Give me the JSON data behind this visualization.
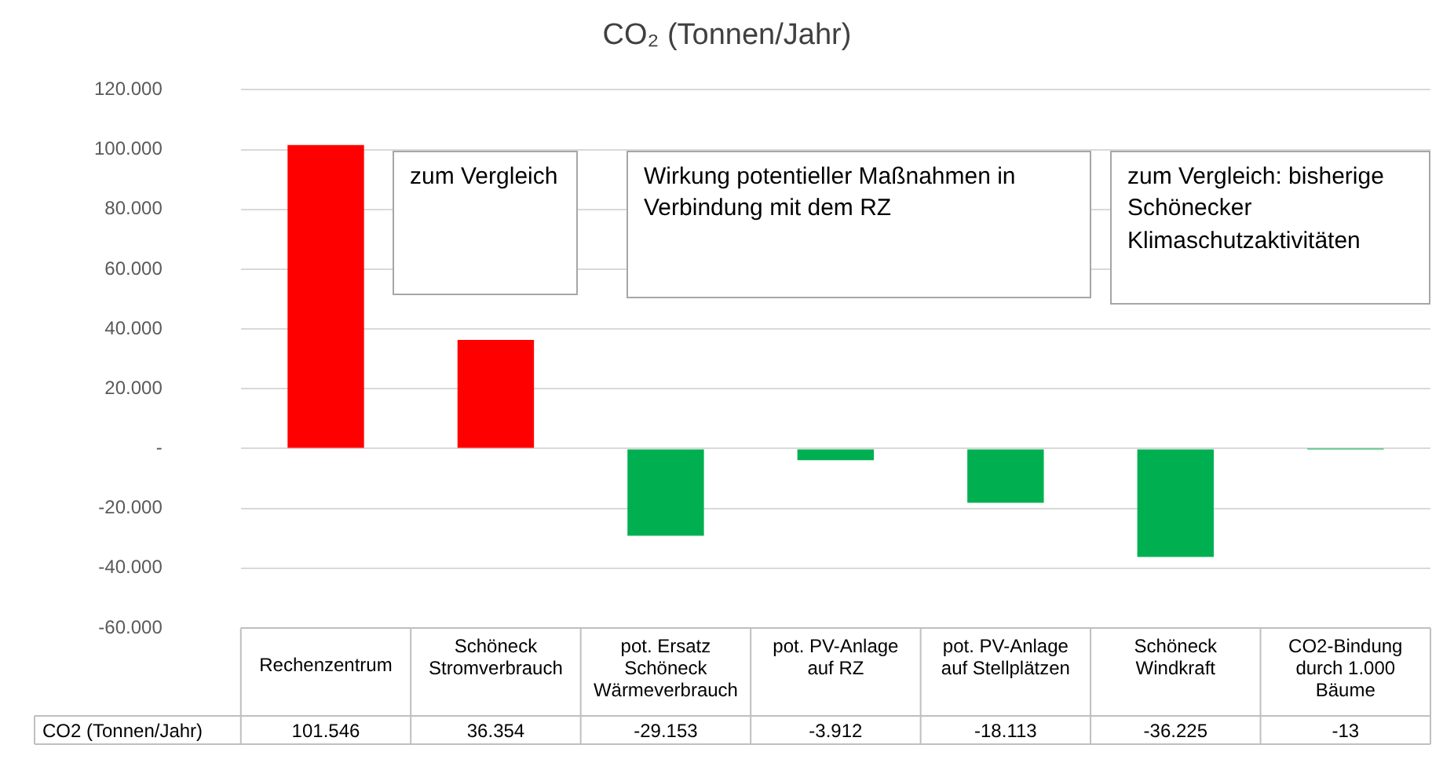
{
  "chart_data": {
    "type": "bar",
    "title": "CO₂ (Tonnen/Jahr)",
    "categories": [
      "Rechenzentrum",
      "Schöneck Stromverbrauch",
      "pot. Ersatz Schöneck Wärmeverbrauch",
      "pot. PV-Anlage auf RZ",
      "pot. PV-Anlage auf Stellplätzen",
      "Schöneck Windkraft",
      "CO2-Bindung durch 1.000 Bäume"
    ],
    "series": [
      {
        "name": "CO2 (Tonnen/Jahr)",
        "colors": [
          "#ff0000",
          "#ff0000",
          "#00b050",
          "#00b050",
          "#00b050",
          "#00b050",
          "#00b050"
        ],
        "values": [
          101546,
          36354,
          -29153,
          -3912,
          -18113,
          -36225,
          -13
        ],
        "value_labels": [
          "101.546",
          "36.354",
          "-29.153",
          "-3.912",
          "-18.113",
          "-36.225",
          "-13"
        ]
      }
    ],
    "ylim": [
      -60000,
      120000
    ],
    "yticks": [
      {
        "value": -60000,
        "label": "-60.000"
      },
      {
        "value": -40000,
        "label": "-40.000"
      },
      {
        "value": -20000,
        "label": "-20.000"
      },
      {
        "value": 0,
        "label": "-"
      },
      {
        "value": 20000,
        "label": "20.000"
      },
      {
        "value": 40000,
        "label": "40.000"
      },
      {
        "value": 60000,
        "label": "60.000"
      },
      {
        "value": 80000,
        "label": "80.000"
      },
      {
        "value": 100000,
        "label": "100.000"
      },
      {
        "value": 120000,
        "label": "120.000"
      }
    ],
    "grid": "y",
    "annotations": [
      "zum Vergleich",
      "Wirkung potentieller Maßnahmen in Verbindung mit dem RZ",
      "zum Vergleich: bisherige Schönecker Klimaschutzaktivitäten"
    ]
  }
}
